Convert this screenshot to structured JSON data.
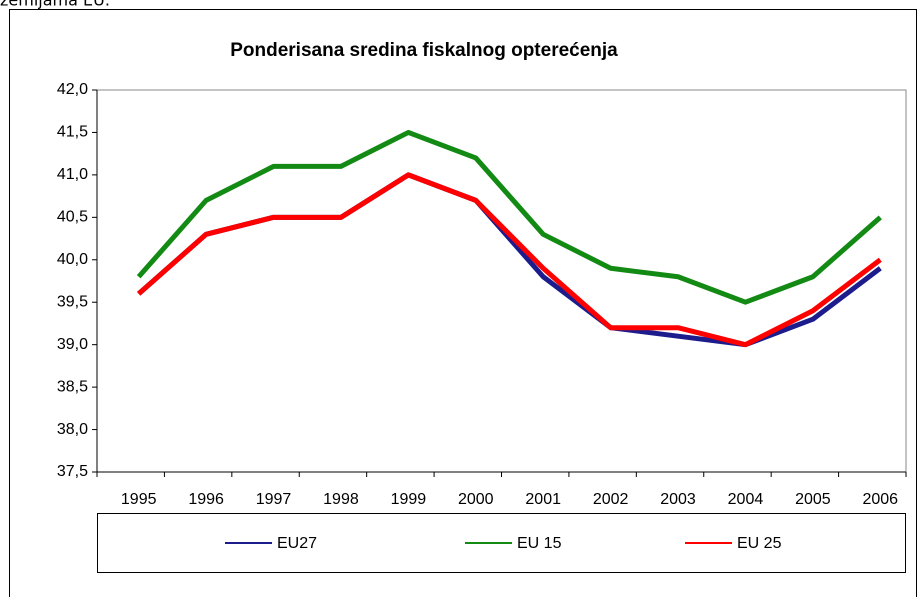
{
  "page_text": "zemljama EU.",
  "chart_data": {
    "type": "line",
    "title": "Ponderisana sredina fiskalnog opterećenja",
    "categories": [
      "1995",
      "1996",
      "1997",
      "1998",
      "1999",
      "2000",
      "2001",
      "2002",
      "2003",
      "2004",
      "2005",
      "2006"
    ],
    "series": [
      {
        "name": "EU27",
        "color": "#1c1c8c",
        "values": [
          39.6,
          40.3,
          40.5,
          40.5,
          41.0,
          40.7,
          39.8,
          39.2,
          39.1,
          39.0,
          39.3,
          39.9
        ]
      },
      {
        "name": "EU 15",
        "color": "#138a13",
        "values": [
          39.8,
          40.7,
          41.1,
          41.1,
          41.5,
          41.2,
          40.3,
          39.9,
          39.8,
          39.5,
          39.8,
          40.5
        ]
      },
      {
        "name": "EU 25",
        "color": "#ff0000",
        "values": [
          39.6,
          40.3,
          40.5,
          40.5,
          41.0,
          40.7,
          39.9,
          39.2,
          39.2,
          39.0,
          39.4,
          40.0
        ]
      }
    ],
    "ylim": [
      37.5,
      42.0
    ],
    "yticks": [
      {
        "value": 37.5,
        "label": "37,5"
      },
      {
        "value": 38.0,
        "label": "38,0"
      },
      {
        "value": 38.5,
        "label": "38,5"
      },
      {
        "value": 39.0,
        "label": "39,0"
      },
      {
        "value": 39.5,
        "label": "39,5"
      },
      {
        "value": 40.0,
        "label": "40,0"
      },
      {
        "value": 40.5,
        "label": "40,5"
      },
      {
        "value": 41.0,
        "label": "41,0"
      },
      {
        "value": 41.5,
        "label": "41,5"
      },
      {
        "value": 42.0,
        "label": "42,0"
      }
    ],
    "legend": "bottom"
  }
}
